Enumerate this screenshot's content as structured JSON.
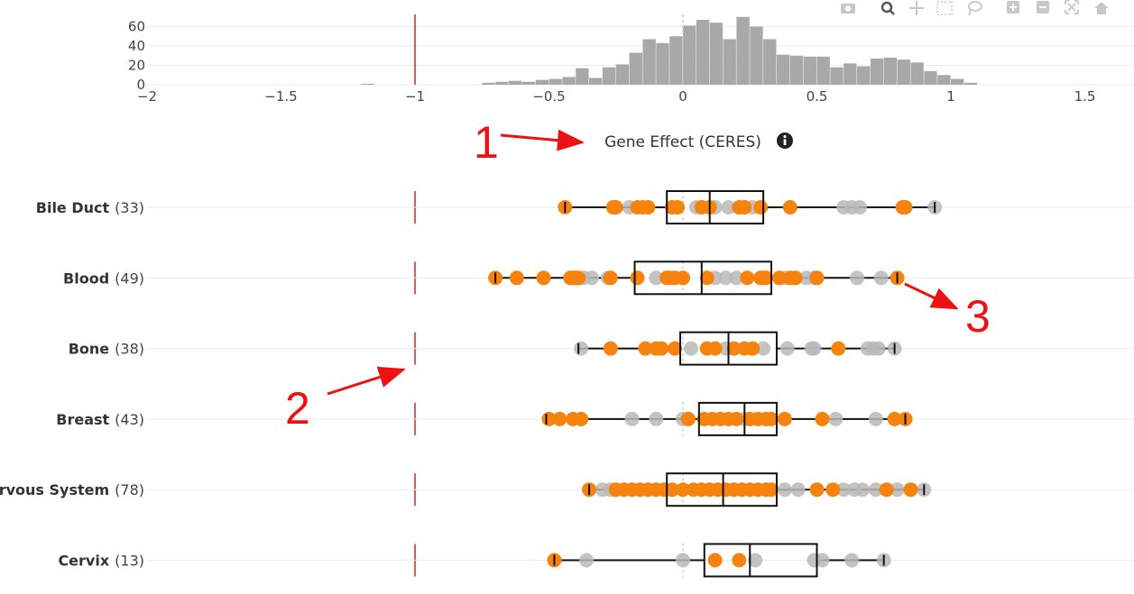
{
  "chart_data": {
    "type": "box",
    "xlabel": "Gene Effect (CERES)",
    "info_icon": "info-circle-icon",
    "xlim": [
      -2,
      1.7
    ],
    "x_ticks": [
      -2,
      -1.5,
      -1,
      -0.5,
      0,
      0.5,
      1,
      1.5
    ],
    "x_tick_labels": [
      "−2",
      "−1.5",
      "−1",
      "−0.5",
      "0",
      "0.5",
      "1",
      "1.5"
    ],
    "reference_line_x": -1,
    "zero_line_x": 0,
    "colors": {
      "highlight": "#f5830e",
      "other": "#b8b8b8",
      "reference": "#dd1f1f",
      "histogram": "#a8a8a8",
      "annotation": "#ee1111"
    },
    "histogram": {
      "ylim": [
        0,
        75
      ],
      "y_ticks": [
        0,
        20,
        40,
        60
      ],
      "y_tick_labels": [
        "0",
        "20",
        "40",
        "60"
      ],
      "bin_width": 0.05,
      "bins": [
        {
          "x": -1.2,
          "count": 1
        },
        {
          "x": -0.75,
          "count": 2
        },
        {
          "x": -0.7,
          "count": 3
        },
        {
          "x": -0.65,
          "count": 4
        },
        {
          "x": -0.6,
          "count": 3
        },
        {
          "x": -0.55,
          "count": 5
        },
        {
          "x": -0.5,
          "count": 6
        },
        {
          "x": -0.45,
          "count": 8
        },
        {
          "x": -0.4,
          "count": 17
        },
        {
          "x": -0.35,
          "count": 7
        },
        {
          "x": -0.3,
          "count": 18
        },
        {
          "x": -0.25,
          "count": 21
        },
        {
          "x": -0.2,
          "count": 33
        },
        {
          "x": -0.15,
          "count": 47
        },
        {
          "x": -0.1,
          "count": 43
        },
        {
          "x": -0.05,
          "count": 50
        },
        {
          "x": 0.0,
          "count": 61
        },
        {
          "x": 0.05,
          "count": 67
        },
        {
          "x": 0.1,
          "count": 64
        },
        {
          "x": 0.15,
          "count": 47
        },
        {
          "x": 0.2,
          "count": 70
        },
        {
          "x": 0.25,
          "count": 60
        },
        {
          "x": 0.3,
          "count": 47
        },
        {
          "x": 0.35,
          "count": 31
        },
        {
          "x": 0.4,
          "count": 30
        },
        {
          "x": 0.45,
          "count": 29
        },
        {
          "x": 0.5,
          "count": 29
        },
        {
          "x": 0.55,
          "count": 18
        },
        {
          "x": 0.6,
          "count": 22
        },
        {
          "x": 0.65,
          "count": 19
        },
        {
          "x": 0.7,
          "count": 27
        },
        {
          "x": 0.75,
          "count": 28
        },
        {
          "x": 0.8,
          "count": 26
        },
        {
          "x": 0.85,
          "count": 23
        },
        {
          "x": 0.9,
          "count": 14
        },
        {
          "x": 0.95,
          "count": 10
        },
        {
          "x": 1.0,
          "count": 6
        },
        {
          "x": 1.05,
          "count": 2
        }
      ]
    },
    "categories": [
      {
        "name": "Bile Duct",
        "count": "(33)",
        "box": {
          "min": -0.44,
          "q1": -0.06,
          "median": 0.1,
          "q3": 0.3,
          "max": 0.94
        },
        "highlight": [
          -0.44,
          -0.26,
          -0.25,
          -0.17,
          -0.15,
          -0.13,
          -0.04,
          -0.02,
          0.07,
          0.1,
          0.21,
          0.23,
          0.29,
          0.4,
          0.82,
          0.83
        ],
        "other": [
          -0.2,
          0.05,
          0.12,
          0.17,
          0.26,
          0.6,
          0.63,
          0.66,
          0.94
        ]
      },
      {
        "name": "Blood",
        "count": "(49)",
        "box": {
          "min": -0.7,
          "q1": -0.18,
          "median": 0.07,
          "q3": 0.33,
          "max": 0.8
        },
        "highlight": [
          -0.7,
          -0.62,
          -0.52,
          -0.42,
          -0.41,
          -0.4,
          -0.39,
          -0.27,
          -0.17,
          -0.06,
          -0.05,
          -0.03,
          0.0,
          0.09,
          0.24,
          0.29,
          0.3,
          0.31,
          0.36,
          0.4,
          0.42,
          0.5,
          0.8
        ],
        "other": [
          -0.37,
          -0.34,
          -0.28,
          -0.1,
          0.12,
          0.16,
          0.2,
          0.38,
          0.46,
          0.49,
          0.65,
          0.74
        ]
      },
      {
        "name": "Bone",
        "count": "(38)",
        "box": {
          "min": -0.39,
          "q1": -0.01,
          "median": 0.17,
          "q3": 0.35,
          "max": 0.79
        },
        "highlight": [
          -0.27,
          -0.14,
          -0.1,
          -0.08,
          -0.03,
          0.09,
          0.12,
          0.19,
          0.23,
          0.26,
          0.58
        ],
        "other": [
          -0.38,
          0.03,
          0.16,
          0.3,
          0.39,
          0.48,
          0.49,
          0.69,
          0.71,
          0.73,
          0.79
        ]
      },
      {
        "name": "Breast",
        "count": "(43)",
        "box": {
          "min": -0.51,
          "q1": 0.06,
          "median": 0.23,
          "q3": 0.35,
          "max": 0.83
        },
        "highlight": [
          -0.5,
          -0.46,
          -0.41,
          -0.38,
          0.02,
          0.08,
          0.11,
          0.14,
          0.17,
          0.2,
          0.25,
          0.28,
          0.31,
          0.33,
          0.38,
          0.52,
          0.79,
          0.83
        ],
        "other": [
          -0.19,
          -0.1,
          0.0,
          0.23,
          0.57,
          0.72
        ]
      },
      {
        "name": "Central Nervous System",
        "count": "(78)",
        "box": {
          "min": -0.35,
          "q1": -0.06,
          "median": 0.15,
          "q3": 0.35,
          "max": 0.9
        },
        "highlight": [
          -0.35,
          -0.25,
          -0.22,
          -0.19,
          -0.16,
          -0.13,
          -0.1,
          -0.07,
          -0.04,
          0.0,
          0.04,
          0.07,
          0.1,
          0.13,
          0.16,
          0.19,
          0.22,
          0.25,
          0.28,
          0.31,
          0.33,
          0.5,
          0.56,
          0.76,
          0.85
        ],
        "other": [
          -0.3,
          -0.27,
          0.38,
          0.43,
          0.6,
          0.64,
          0.67,
          0.72,
          0.8,
          0.9
        ]
      },
      {
        "name": "Cervix",
        "count": "(13)",
        "box": {
          "min": -0.48,
          "q1": 0.08,
          "median": 0.25,
          "q3": 0.5,
          "max": 0.75
        },
        "highlight": [
          -0.48,
          0.12,
          0.21
        ],
        "other": [
          -0.36,
          0.0,
          0.27,
          0.49,
          0.52,
          0.63,
          0.75
        ]
      }
    ],
    "annotations": [
      {
        "label": "1",
        "points_to": "axis-title"
      },
      {
        "label": "2",
        "points_to": "reference-line"
      },
      {
        "label": "3",
        "points_to": "blood-outlier"
      }
    ],
    "modebar": [
      "camera-icon",
      "zoom-icon",
      "pan-icon",
      "box-select-icon",
      "lasso-icon",
      "zoom-in-icon",
      "zoom-out-icon",
      "autoscale-icon",
      "home-icon"
    ]
  }
}
